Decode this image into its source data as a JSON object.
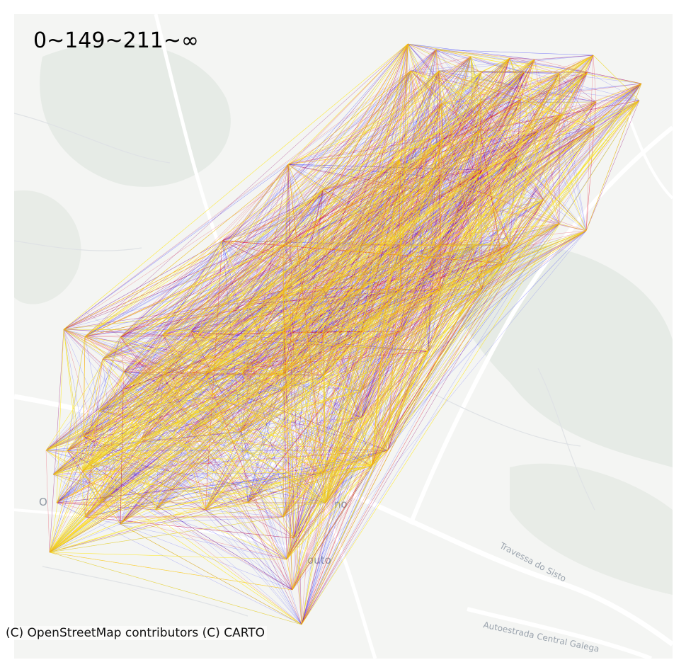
{
  "legend": {
    "bins_label": "0~149~211~∞"
  },
  "attribution": "(C) OpenStreetMap contributors (C) CARTO",
  "basemap": {
    "streets": [
      "Travessa do Sisto",
      "Autoestrada Central Galega"
    ],
    "places": [
      "O",
      "no",
      "outo"
    ]
  },
  "colors": {
    "background": "#f4f5f3",
    "low": "#1a1aff",
    "mid": "#e0102a",
    "high": "#ffe600"
  },
  "flow_tiers": [
    "low",
    "mid",
    "high"
  ]
}
